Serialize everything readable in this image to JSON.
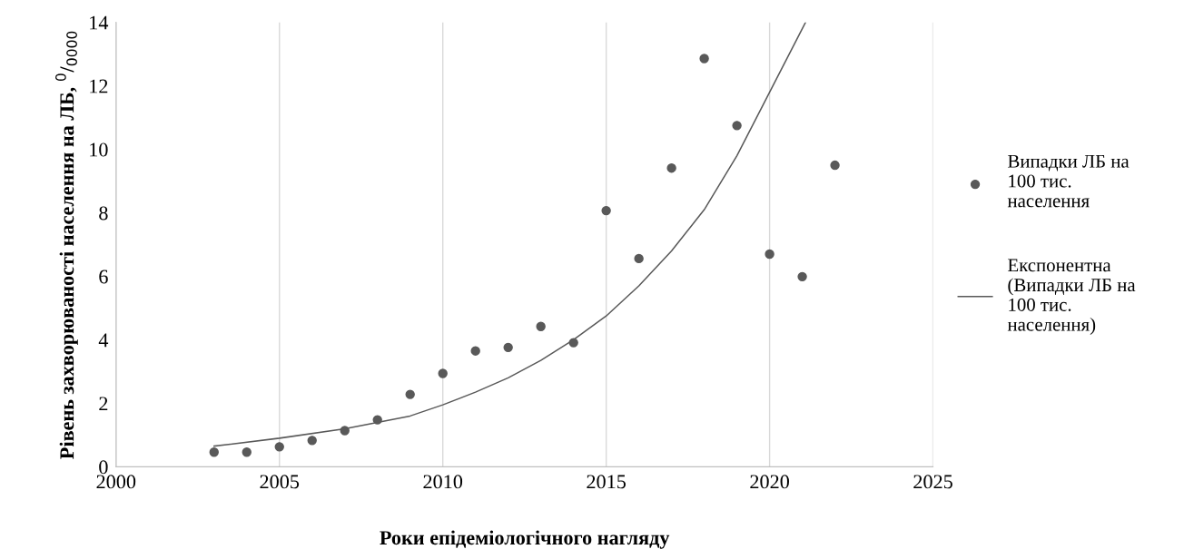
{
  "chart_data": {
    "type": "scatter",
    "xlabel": "Роки епідеміологічного нагляду",
    "ylabel": "Рівень захворюваності населення на ЛБ, $^{0}$/$_{0000}$",
    "xlim": [
      2000,
      2025
    ],
    "xticks": [
      2000,
      2005,
      2010,
      2015,
      2020,
      2025
    ],
    "ylim": [
      0,
      14
    ],
    "yticks": [
      0,
      2,
      4,
      6,
      8,
      10,
      12,
      14
    ],
    "grid": "x",
    "legend": "right",
    "series": [
      {
        "name": "Випадки ЛБ на 100 тис. населення",
        "marker": "circle",
        "color": "#595959",
        "x": [
          2003,
          2004,
          2005,
          2006,
          2007,
          2008,
          2009,
          2010,
          2011,
          2012,
          2013,
          2014,
          2015,
          2016,
          2017,
          2018,
          2019,
          2020,
          2021,
          2022
        ],
        "values": [
          0.46,
          0.46,
          0.63,
          0.83,
          1.14,
          1.48,
          2.28,
          2.94,
          3.65,
          3.76,
          4.42,
          3.91,
          8.07,
          6.56,
          9.41,
          12.86,
          10.75,
          6.7,
          5.99,
          9.5
        ]
      },
      {
        "name": "Експонентна (Випадки ЛБ на 100 тис. населення)",
        "type": "line",
        "line_style": "solid",
        "color": "#595959",
        "x": [
          2003,
          2005,
          2007,
          2009,
          2010,
          2011,
          2012,
          2013,
          2014,
          2015,
          2016,
          2017,
          2018,
          2019,
          2020,
          2021,
          2021.1
        ],
        "values": [
          0.65,
          0.9,
          1.2,
          1.6,
          1.95,
          2.35,
          2.8,
          3.35,
          4.0,
          4.75,
          5.7,
          6.8,
          8.1,
          9.8,
          11.8,
          13.8,
          14.0
        ]
      }
    ]
  }
}
